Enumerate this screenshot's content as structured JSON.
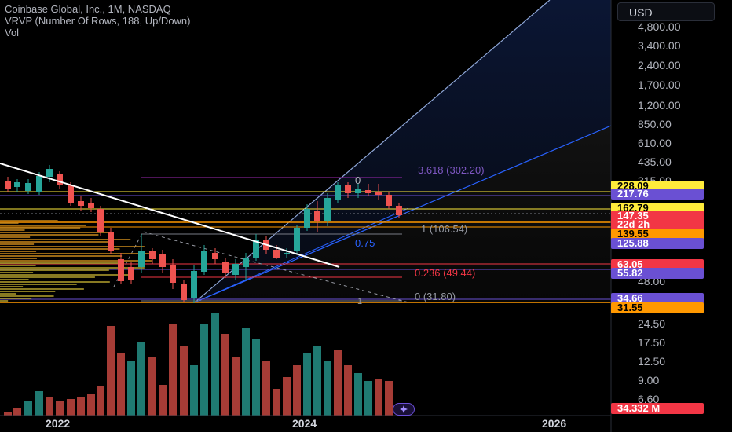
{
  "legend": {
    "symbol_line": "Coinbase Global, Inc., 1M, NASDAQ",
    "indicator_line": "VRVP (Number Of Rows, 188, Up/Down)",
    "volume_line": "Vol"
  },
  "currency_button": "USD",
  "price_axis_ticks": [
    "4,800.00",
    "3,400.00",
    "2,400.00",
    "1,700.00",
    "1,200.00",
    "850.00",
    "610.00",
    "435.00",
    "315.00",
    "24.50",
    "17.50",
    "12.50",
    "9.00",
    "6.60"
  ],
  "price_axis_partial": "48.00",
  "price_tags": [
    {
      "id": "tag-228",
      "text": "228.09",
      "bg": "#ffeb3b",
      "fg": "#000000"
    },
    {
      "id": "tag-217",
      "text": "217.76",
      "bg": "#6a50d3",
      "fg": "#ffffff"
    },
    {
      "id": "tag-162",
      "text": "162.79",
      "bg": "#ffeb3b",
      "fg": "#000000"
    },
    {
      "id": "tag-147",
      "text": "147.35",
      "bg": "#f23645",
      "fg": "#ffffff"
    },
    {
      "id": "tag-countdown",
      "text": "22d 2h",
      "bg": "#f23645",
      "fg": "#ffffff"
    },
    {
      "id": "tag-139",
      "text": "139.55",
      "bg": "#ff9800",
      "fg": "#000000"
    },
    {
      "id": "tag-125",
      "text": "125.88",
      "bg": "#6a50d3",
      "fg": "#ffffff"
    },
    {
      "id": "tag-63",
      "text": "63.05",
      "bg": "#f23645",
      "fg": "#ffffff"
    },
    {
      "id": "tag-55",
      "text": "55.82",
      "bg": "#6a50d3",
      "fg": "#ffffff"
    },
    {
      "id": "tag-34",
      "text": "34.66",
      "bg": "#6a50d3",
      "fg": "#ffffff"
    },
    {
      "id": "tag-31",
      "text": "31.55",
      "bg": "#ff9800",
      "fg": "#000000"
    },
    {
      "id": "tag-vol",
      "text": "34.332 M",
      "bg": "#f23645",
      "fg": "#ffffff"
    }
  ],
  "fib_labels": {
    "zero_top": "0",
    "ext_3618": "3.618 (302.20)",
    "one": "1 (106.54)",
    "p075": "0.75",
    "p0236": "0.236 (49.44)",
    "zero_bottom": "0 (31.80)",
    "one_bottom": "1"
  },
  "time_axis": [
    "2022",
    "2024",
    "2026"
  ],
  "colors": {
    "up": "#26a69a",
    "down": "#ef5350",
    "vol_up": "#1f7a72",
    "vol_down": "#a63c36",
    "trendline": "#ffffff",
    "fib_blue": "#2962ff",
    "fan_light": "#8fa7d8"
  },
  "icons": {
    "replay": "sparkle-icon"
  }
}
